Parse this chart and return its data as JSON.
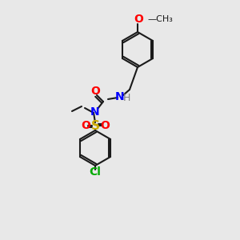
{
  "background_color": "#e8e8e8",
  "bond_color": "#1a1a1a",
  "atom_colors": {
    "O": "#ff0000",
    "N": "#0000ff",
    "S": "#ccaa00",
    "Cl": "#00aa00",
    "H": "#808080",
    "C": "#1a1a1a"
  },
  "font_size_atom": 9,
  "font_size_label": 9
}
